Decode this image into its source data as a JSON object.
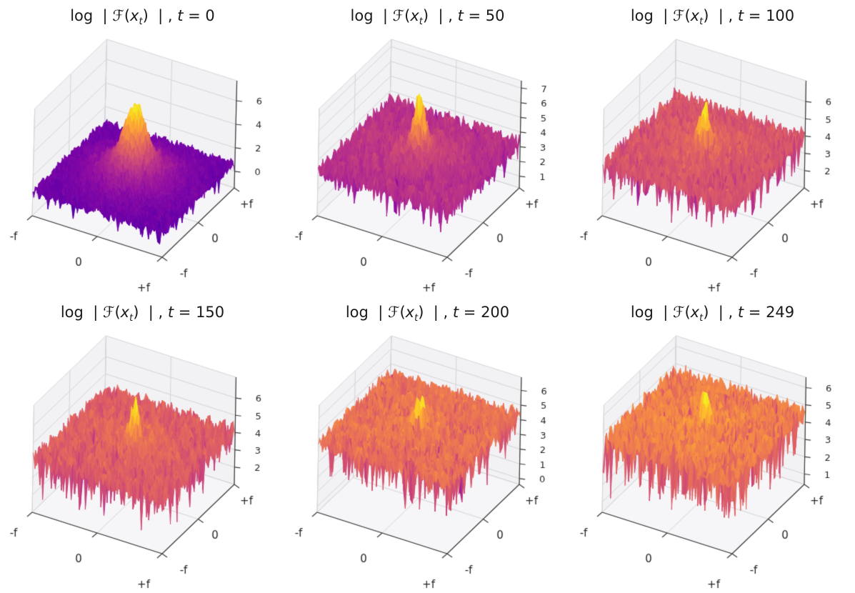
{
  "figure": {
    "background": "#ffffff",
    "rows": 2,
    "cols": 3
  },
  "title_parts": {
    "lhs": "log  | ",
    "func": "ℱ",
    "arg_open": "(",
    "arg_var": "x",
    "arg_sub": "t",
    "arg_close": ")  | , ",
    "t_var": "t",
    "equals": " = "
  },
  "colormap": {
    "name": "plasma",
    "stops": [
      "#0d0887",
      "#41049d",
      "#6a00a8",
      "#8f0da4",
      "#b12a90",
      "#cc4778",
      "#e16462",
      "#f2844b",
      "#fca636",
      "#fcce25",
      "#f0f921"
    ]
  },
  "style": {
    "pane_color": "#f2f2f4",
    "floor_color": "#f6f6f8",
    "grid_color": "#d4d4da",
    "axis_color": "#3a3a3a",
    "tick_color": "#262626",
    "title_color": "#1a1a1a",
    "tick_font_px": 15,
    "ztick_font_px": 13
  },
  "chart_data": [
    {
      "type": "surface3d",
      "title": "log | ℱ(xₜ) | , t = 0",
      "t_label": "0",
      "x_tick_labels": [
        "-f",
        "0",
        "+f"
      ],
      "y_tick_labels": [
        "-f",
        "0",
        "+f"
      ],
      "z_ticks": [
        0,
        2,
        4,
        6
      ],
      "zlim": [
        -1.4,
        7.7
      ],
      "noise_floor": 0.6,
      "peak_value": 6.8,
      "color_range": [
        -1.1,
        6.9
      ],
      "render": {
        "seed": 11,
        "grid_n": 64,
        "broad_amp": 1.9,
        "broad_sigma": 0.3,
        "peak_amp": 4.3,
        "peak_sigma": 0.095,
        "noise_amp": 0.5,
        "spike_prob": 0.04,
        "spike_depth": 1.2
      }
    },
    {
      "type": "surface3d",
      "title": "log | ℱ(xₜ) | , t = 50",
      "t_label": "50",
      "x_tick_labels": [
        "-f",
        "0",
        "+f"
      ],
      "y_tick_labels": [
        "-f",
        "0",
        "+f"
      ],
      "z_ticks": [
        1,
        2,
        3,
        4,
        5,
        6,
        7
      ],
      "zlim": [
        0.2,
        7.5
      ],
      "noise_floor": 3.3,
      "peak_value": 7.4,
      "color_range": [
        0.3,
        7.4
      ],
      "render": {
        "seed": 22,
        "grid_n": 64,
        "broad_amp": 0.6,
        "broad_sigma": 0.25,
        "peak_amp": 4.0,
        "peak_sigma": 0.05,
        "noise_amp": 0.65,
        "spike_prob": 0.05,
        "spike_depth": 1.5
      }
    },
    {
      "type": "surface3d",
      "title": "log | ℱ(xₜ) | , t = 100",
      "t_label": "100",
      "x_tick_labels": [
        "-f",
        "0",
        "+f"
      ],
      "y_tick_labels": [
        "-f",
        "0",
        "+f"
      ],
      "z_ticks": [
        2,
        3,
        4,
        5,
        6
      ],
      "zlim": [
        1.0,
        7.2
      ],
      "noise_floor": 3.9,
      "peak_value": 6.6,
      "color_range": [
        0.8,
        6.5
      ],
      "render": {
        "seed": 33,
        "grid_n": 64,
        "broad_amp": 0.35,
        "broad_sigma": 0.25,
        "peak_amp": 2.4,
        "peak_sigma": 0.045,
        "noise_amp": 0.6,
        "spike_prob": 0.06,
        "spike_depth": 1.7
      }
    },
    {
      "type": "surface3d",
      "title": "log | ℱ(xₜ) | , t = 150",
      "t_label": "150",
      "x_tick_labels": [
        "-f",
        "0",
        "+f"
      ],
      "y_tick_labels": [
        "-f",
        "0",
        "+f"
      ],
      "z_ticks": [
        2,
        3,
        4,
        5,
        6
      ],
      "zlim": [
        1.0,
        7.2
      ],
      "noise_floor": 4.05,
      "peak_value": 6.55,
      "color_range": [
        0.7,
        6.5
      ],
      "render": {
        "seed": 44,
        "grid_n": 64,
        "broad_amp": 0.3,
        "broad_sigma": 0.25,
        "peak_amp": 2.2,
        "peak_sigma": 0.04,
        "noise_amp": 0.6,
        "spike_prob": 0.07,
        "spike_depth": 1.9
      }
    },
    {
      "type": "surface3d",
      "title": "log | ℱ(xₜ) | , t = 200",
      "t_label": "200",
      "x_tick_labels": [
        "-f",
        "0",
        "+f"
      ],
      "y_tick_labels": [
        "-f",
        "0",
        "+f"
      ],
      "z_ticks": [
        0,
        1,
        2,
        3,
        4,
        5,
        6
      ],
      "zlim": [
        -0.4,
        6.9
      ],
      "noise_floor": 4.3,
      "peak_value": 6.55,
      "color_range": [
        0.5,
        6.4
      ],
      "render": {
        "seed": 55,
        "grid_n": 64,
        "broad_amp": 0.25,
        "broad_sigma": 0.25,
        "peak_amp": 2.0,
        "peak_sigma": 0.038,
        "noise_amp": 0.6,
        "spike_prob": 0.08,
        "spike_depth": 2.3
      }
    },
    {
      "type": "surface3d",
      "title": "log | ℱ(xₜ) | , t = 249",
      "t_label": "249",
      "x_tick_labels": [
        "-f",
        "0",
        "+f"
      ],
      "y_tick_labels": [
        "-f",
        "0",
        "+f"
      ],
      "z_ticks": [
        1,
        2,
        3,
        4,
        5,
        6
      ],
      "zlim": [
        0.4,
        6.6
      ],
      "noise_floor": 4.55,
      "peak_value": 6.45,
      "color_range": [
        0.6,
        6.3
      ],
      "render": {
        "seed": 66,
        "grid_n": 64,
        "broad_amp": 0.2,
        "broad_sigma": 0.25,
        "peak_amp": 1.7,
        "peak_sigma": 0.038,
        "noise_amp": 0.55,
        "spike_prob": 0.1,
        "spike_depth": 2.7
      }
    }
  ]
}
